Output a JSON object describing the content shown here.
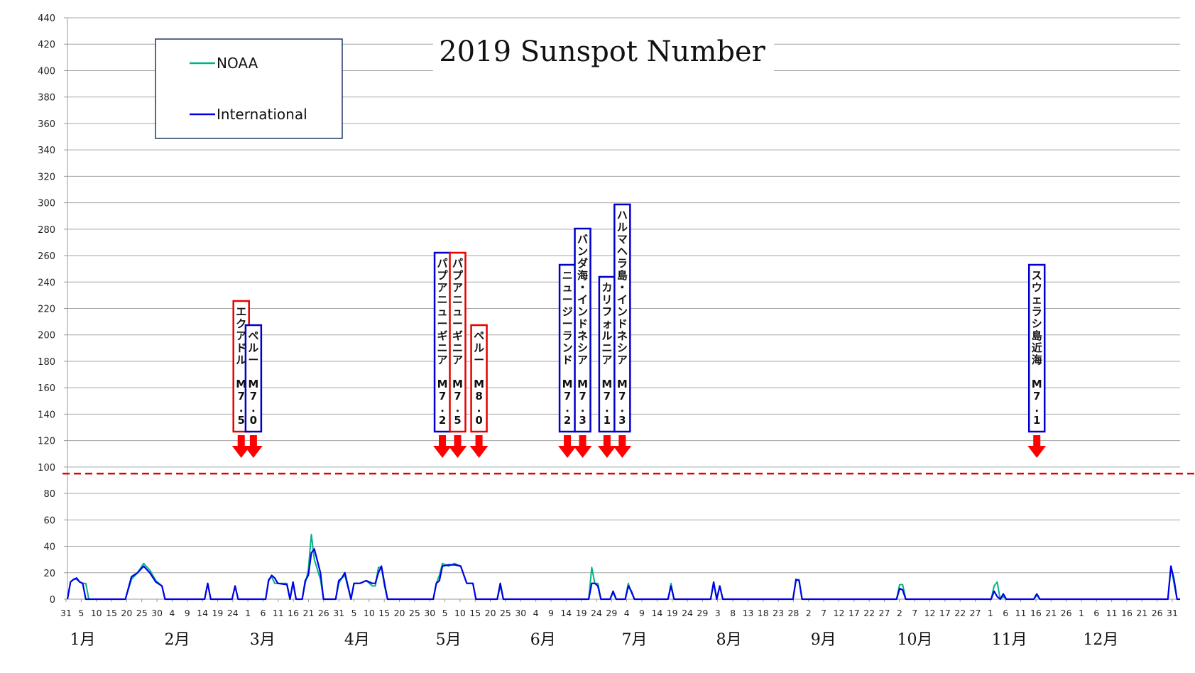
{
  "chart_data": {
    "type": "line",
    "title": "2019 Sunspot Number",
    "ylim": [
      0,
      440
    ],
    "yticks": [
      0,
      20,
      40,
      60,
      80,
      100,
      120,
      140,
      160,
      180,
      200,
      220,
      240,
      260,
      280,
      300,
      320,
      340,
      360,
      380,
      400,
      420,
      440
    ],
    "grid": true,
    "legend_position": "top-left",
    "threshold": {
      "value": 95,
      "style": "dashed",
      "color": "#e60000"
    },
    "x_tick_labels": [
      "31",
      "5",
      "10",
      "15",
      "20",
      "25",
      "30",
      "4",
      "9",
      "14",
      "19",
      "24",
      "1",
      "6",
      "11",
      "16",
      "21",
      "26",
      "31",
      "5",
      "10",
      "15",
      "20",
      "25",
      "30",
      "5",
      "10",
      "15",
      "20",
      "25",
      "30",
      "4",
      "9",
      "14",
      "19",
      "24",
      "29",
      "4",
      "9",
      "14",
      "19",
      "24",
      "29",
      "3",
      "8",
      "13",
      "18",
      "23",
      "28",
      "2",
      "7",
      "12",
      "17",
      "22",
      "27",
      "2",
      "7",
      "12",
      "17",
      "22",
      "27",
      "1",
      "6",
      "11",
      "16",
      "21",
      "26",
      "1",
      "6",
      "11",
      "16",
      "21",
      "26",
      "31"
    ],
    "months": [
      "1月",
      "2月",
      "3月",
      "4月",
      "5月",
      "6月",
      "7月",
      "8月",
      "9月",
      "10月",
      "11月",
      "12月"
    ],
    "series": [
      {
        "name": "NOAA",
        "color": "#00b386",
        "points": [
          [
            1,
            0
          ],
          [
            2,
            13
          ],
          [
            3,
            15
          ],
          [
            4,
            15
          ],
          [
            5,
            13
          ],
          [
            6,
            12
          ],
          [
            7,
            12
          ],
          [
            8,
            0
          ],
          [
            20,
            0
          ],
          [
            22,
            15
          ],
          [
            24,
            20
          ],
          [
            26,
            27
          ],
          [
            28,
            22
          ],
          [
            30,
            14
          ],
          [
            32,
            10
          ],
          [
            33,
            0
          ],
          [
            46,
            0
          ],
          [
            47,
            12
          ],
          [
            48,
            0
          ],
          [
            55,
            0
          ],
          [
            56,
            10
          ],
          [
            57,
            0
          ],
          [
            66,
            0
          ],
          [
            67,
            15
          ],
          [
            68,
            17
          ],
          [
            69,
            12
          ],
          [
            73,
            12
          ],
          [
            74,
            0
          ],
          [
            75,
            12
          ],
          [
            76,
            0
          ],
          [
            78,
            0
          ],
          [
            79,
            12
          ],
          [
            80,
            22
          ],
          [
            81,
            49
          ],
          [
            82,
            30
          ],
          [
            84,
            15
          ],
          [
            85,
            0
          ],
          [
            89,
            0
          ],
          [
            90,
            12
          ],
          [
            91,
            16
          ],
          [
            92,
            18
          ],
          [
            94,
            0
          ],
          [
            95,
            12
          ],
          [
            97,
            12
          ],
          [
            99,
            14
          ],
          [
            101,
            10
          ],
          [
            102,
            10
          ],
          [
            103,
            24
          ],
          [
            104,
            24
          ],
          [
            105,
            10
          ],
          [
            106,
            0
          ],
          [
            121,
            0
          ],
          [
            122,
            12
          ],
          [
            123,
            18
          ],
          [
            124,
            27
          ],
          [
            126,
            25
          ],
          [
            128,
            27
          ],
          [
            130,
            25
          ],
          [
            132,
            12
          ],
          [
            134,
            12
          ],
          [
            135,
            0
          ],
          [
            142,
            0
          ],
          [
            143,
            10
          ],
          [
            144,
            0
          ],
          [
            172,
            0
          ],
          [
            173,
            24
          ],
          [
            174,
            12
          ],
          [
            175,
            12
          ],
          [
            176,
            0
          ],
          [
            179,
            0
          ],
          [
            180,
            5
          ],
          [
            181,
            0
          ],
          [
            184,
            0
          ],
          [
            185,
            12
          ],
          [
            186,
            5
          ],
          [
            187,
            0
          ],
          [
            198,
            0
          ],
          [
            199,
            12
          ],
          [
            200,
            0
          ],
          [
            212,
            0
          ],
          [
            213,
            12
          ],
          [
            214,
            0
          ],
          [
            215,
            10
          ],
          [
            216,
            0
          ],
          [
            239,
            0
          ],
          [
            240,
            14
          ],
          [
            241,
            15
          ],
          [
            242,
            0
          ],
          [
            273,
            0
          ],
          [
            274,
            11
          ],
          [
            275,
            11
          ],
          [
            276,
            0
          ],
          [
            304,
            0
          ],
          [
            305,
            10
          ],
          [
            306,
            13
          ],
          [
            307,
            0
          ],
          [
            308,
            2
          ],
          [
            309,
            0
          ],
          [
            318,
            0
          ],
          [
            319,
            3
          ],
          [
            320,
            0
          ],
          [
            362,
            0
          ],
          [
            363,
            25
          ],
          [
            364,
            12
          ],
          [
            365,
            0
          ],
          [
            366,
            0
          ]
        ]
      },
      {
        "name": "International",
        "color": "#0000e6",
        "points": [
          [
            1,
            0
          ],
          [
            2,
            13
          ],
          [
            3,
            15
          ],
          [
            4,
            16
          ],
          [
            5,
            13
          ],
          [
            6,
            12
          ],
          [
            7,
            0
          ],
          [
            20,
            0
          ],
          [
            22,
            17
          ],
          [
            24,
            20
          ],
          [
            26,
            25
          ],
          [
            28,
            20
          ],
          [
            30,
            13
          ],
          [
            32,
            10
          ],
          [
            33,
            0
          ],
          [
            46,
            0
          ],
          [
            47,
            12
          ],
          [
            48,
            0
          ],
          [
            55,
            0
          ],
          [
            56,
            10
          ],
          [
            57,
            0
          ],
          [
            66,
            0
          ],
          [
            67,
            14
          ],
          [
            68,
            18
          ],
          [
            69,
            16
          ],
          [
            70,
            12
          ],
          [
            73,
            11
          ],
          [
            74,
            0
          ],
          [
            75,
            13
          ],
          [
            76,
            0
          ],
          [
            78,
            0
          ],
          [
            79,
            14
          ],
          [
            80,
            18
          ],
          [
            81,
            35
          ],
          [
            82,
            38
          ],
          [
            84,
            20
          ],
          [
            85,
            0
          ],
          [
            89,
            0
          ],
          [
            90,
            14
          ],
          [
            91,
            16
          ],
          [
            92,
            20
          ],
          [
            93,
            10
          ],
          [
            94,
            0
          ],
          [
            95,
            12
          ],
          [
            97,
            12
          ],
          [
            99,
            14
          ],
          [
            101,
            12
          ],
          [
            102,
            12
          ],
          [
            103,
            20
          ],
          [
            104,
            25
          ],
          [
            105,
            12
          ],
          [
            106,
            0
          ],
          [
            121,
            0
          ],
          [
            122,
            12
          ],
          [
            123,
            14
          ],
          [
            124,
            25
          ],
          [
            126,
            26
          ],
          [
            128,
            26
          ],
          [
            130,
            25
          ],
          [
            132,
            12
          ],
          [
            134,
            12
          ],
          [
            135,
            0
          ],
          [
            142,
            0
          ],
          [
            143,
            12
          ],
          [
            144,
            0
          ],
          [
            172,
            0
          ],
          [
            173,
            12
          ],
          [
            174,
            12
          ],
          [
            175,
            10
          ],
          [
            176,
            0
          ],
          [
            179,
            0
          ],
          [
            180,
            6
          ],
          [
            181,
            0
          ],
          [
            184,
            0
          ],
          [
            185,
            10
          ],
          [
            186,
            6
          ],
          [
            187,
            0
          ],
          [
            198,
            0
          ],
          [
            199,
            10
          ],
          [
            200,
            0
          ],
          [
            212,
            0
          ],
          [
            213,
            13
          ],
          [
            214,
            0
          ],
          [
            215,
            10
          ],
          [
            216,
            0
          ],
          [
            239,
            0
          ],
          [
            240,
            15
          ],
          [
            241,
            14
          ],
          [
            242,
            0
          ],
          [
            273,
            0
          ],
          [
            274,
            8
          ],
          [
            275,
            7
          ],
          [
            276,
            0
          ],
          [
            304,
            0
          ],
          [
            305,
            6
          ],
          [
            306,
            2
          ],
          [
            307,
            0
          ],
          [
            308,
            4
          ],
          [
            309,
            0
          ],
          [
            318,
            0
          ],
          [
            319,
            4
          ],
          [
            320,
            0
          ],
          [
            362,
            0
          ],
          [
            363,
            25
          ],
          [
            364,
            15
          ],
          [
            365,
            0
          ],
          [
            366,
            0
          ]
        ]
      }
    ],
    "annotations": [
      {
        "text": "エクアドル　M7.5",
        "frame": "#e60000",
        "day": 58
      },
      {
        "text": "ペルー　M7.0",
        "frame": "#0000cc",
        "day": 62
      },
      {
        "text": "パプアニューギニア　M7.2",
        "frame": "#0000cc",
        "day": 124
      },
      {
        "text": "パプアニューギニア　M7.5",
        "frame": "#e60000",
        "day": 129
      },
      {
        "text": "ペルー　M8.0",
        "frame": "#e60000",
        "day": 136
      },
      {
        "text": "ニュージーランド　M7.2",
        "frame": "#0000cc",
        "day": 165
      },
      {
        "text": "バンダ海・インドネシア　M7.3",
        "frame": "#0000cc",
        "day": 170
      },
      {
        "text": "カリフォルニア　M7.1",
        "frame": "#0000cc",
        "day": 178
      },
      {
        "text": "ハルマヘラ島・インドネシア　M7.3",
        "frame": "#0000cc",
        "day": 183
      },
      {
        "text": "スウェラシ島近海　M7.1",
        "frame": "#0000cc",
        "day": 319
      }
    ]
  }
}
